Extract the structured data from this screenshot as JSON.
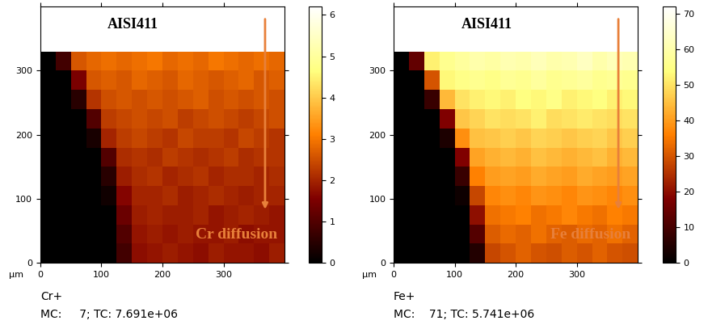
{
  "chart_data": [
    {
      "type": "heatmap",
      "title": "AISI411",
      "annotation": "Cr diffusion",
      "axis_unit": "μm",
      "ion": "Cr+",
      "footer": "MC:     7; TC: 7.691e+06",
      "xlim": [
        0,
        400
      ],
      "ylim": [
        0,
        400
      ],
      "xticks": [
        0,
        100,
        200,
        300
      ],
      "yticks": [
        0,
        100,
        200,
        300
      ],
      "x_edges": [
        0,
        25,
        50,
        75,
        100,
        125,
        150,
        175,
        200,
        225,
        250,
        275,
        300,
        325,
        350,
        375,
        400
      ],
      "y_edges": [
        0,
        30,
        60,
        90,
        120,
        150,
        180,
        210,
        240,
        270,
        300,
        330
      ],
      "cells": [
        [
          0,
          0,
          0,
          0,
          0,
          0.8,
          1.7,
          1.8,
          1.9,
          1.8,
          1.7,
          1.9,
          1.8,
          1.8,
          1.7,
          1.9
        ],
        [
          0,
          0,
          0,
          0,
          0,
          1.0,
          1.8,
          1.9,
          1.8,
          1.9,
          1.8,
          1.8,
          1.9,
          1.7,
          1.8,
          1.8
        ],
        [
          0,
          0,
          0,
          0,
          0,
          1.3,
          1.9,
          2.0,
          1.9,
          1.9,
          2.0,
          1.8,
          1.9,
          2.0,
          1.9,
          1.8
        ],
        [
          0,
          0,
          0,
          0,
          0.2,
          1.6,
          2.0,
          2.0,
          2.1,
          1.9,
          2.0,
          2.1,
          2.0,
          1.9,
          2.0,
          2.0
        ],
        [
          0,
          0,
          0,
          0,
          0.5,
          1.9,
          2.1,
          2.2,
          2.0,
          2.1,
          2.2,
          2.0,
          2.1,
          2.1,
          2.0,
          2.1
        ],
        [
          0,
          0,
          0,
          0,
          1.0,
          2.1,
          2.2,
          2.1,
          2.3,
          2.2,
          2.1,
          2.2,
          2.3,
          2.1,
          2.2,
          2.2
        ],
        [
          0,
          0,
          0,
          0.3,
          2.0,
          2.3,
          2.4,
          2.3,
          2.2,
          2.4,
          2.3,
          2.3,
          2.2,
          2.4,
          2.3,
          2.2
        ],
        [
          0,
          0,
          0,
          1.0,
          2.3,
          2.4,
          2.5,
          2.4,
          2.5,
          2.3,
          2.4,
          2.5,
          2.4,
          2.3,
          2.4,
          2.5
        ],
        [
          0,
          0,
          0.5,
          2.2,
          2.5,
          2.6,
          2.5,
          2.6,
          2.5,
          2.6,
          2.7,
          2.5,
          2.6,
          2.5,
          2.6,
          2.5
        ],
        [
          0,
          0,
          1.5,
          2.6,
          2.7,
          2.6,
          2.8,
          2.7,
          2.6,
          2.8,
          2.7,
          2.6,
          2.7,
          2.8,
          2.6,
          2.7
        ],
        [
          0,
          0.8,
          2.6,
          2.8,
          2.9,
          2.8,
          2.9,
          3.0,
          2.8,
          2.9,
          2.8,
          3.0,
          2.9,
          2.8,
          2.9,
          2.8
        ]
      ],
      "colorbar_range": [
        0,
        6.2
      ],
      "colorbar_ticks": [
        0,
        1,
        2,
        3,
        4,
        5,
        6
      ]
    },
    {
      "type": "heatmap",
      "title": "AISI411",
      "annotation": "Fe diffusion",
      "axis_unit": "μm",
      "ion": "Fe+",
      "footer": "MC:    71; TC: 5.741e+06",
      "xlim": [
        0,
        400
      ],
      "ylim": [
        0,
        400
      ],
      "xticks": [
        0,
        100,
        200,
        300
      ],
      "yticks": [
        0,
        100,
        200,
        300
      ],
      "x_edges": [
        0,
        25,
        50,
        75,
        100,
        125,
        150,
        175,
        200,
        225,
        250,
        275,
        300,
        325,
        350,
        375,
        400
      ],
      "y_edges": [
        0,
        30,
        60,
        90,
        120,
        150,
        180,
        210,
        240,
        270,
        300,
        330
      ],
      "cells": [
        [
          0,
          0,
          0,
          0,
          0,
          5,
          28,
          30,
          32,
          30,
          29,
          31,
          30,
          32,
          30,
          29
        ],
        [
          0,
          0,
          0,
          0,
          0,
          12,
          31,
          33,
          32,
          34,
          32,
          31,
          33,
          32,
          34,
          32
        ],
        [
          0,
          0,
          0,
          0,
          0,
          20,
          34,
          35,
          36,
          34,
          35,
          37,
          35,
          34,
          36,
          35
        ],
        [
          0,
          0,
          0,
          0,
          2,
          28,
          37,
          38,
          37,
          39,
          38,
          37,
          39,
          38,
          37,
          38
        ],
        [
          0,
          0,
          0,
          0,
          8,
          36,
          40,
          41,
          40,
          42,
          41,
          40,
          42,
          41,
          40,
          41
        ],
        [
          0,
          0,
          0,
          0,
          18,
          41,
          43,
          44,
          43,
          45,
          44,
          43,
          44,
          45,
          43,
          44
        ],
        [
          0,
          0,
          0,
          4,
          38,
          45,
          46,
          47,
          46,
          48,
          47,
          46,
          47,
          48,
          46,
          47
        ],
        [
          0,
          0,
          0,
          18,
          46,
          48,
          50,
          49,
          50,
          52,
          49,
          50,
          51,
          50,
          49,
          50
        ],
        [
          0,
          0,
          8,
          44,
          50,
          52,
          53,
          52,
          54,
          53,
          55,
          52,
          53,
          54,
          52,
          53
        ],
        [
          0,
          0,
          30,
          53,
          55,
          56,
          55,
          57,
          56,
          58,
          56,
          57,
          58,
          56,
          57,
          56
        ],
        [
          0,
          14,
          52,
          56,
          58,
          60,
          59,
          61,
          60,
          62,
          60,
          61,
          63,
          60,
          62,
          61
        ]
      ],
      "colorbar_range": [
        0,
        72
      ],
      "colorbar_ticks": [
        0,
        10,
        20,
        30,
        40,
        50,
        60,
        70
      ]
    }
  ]
}
